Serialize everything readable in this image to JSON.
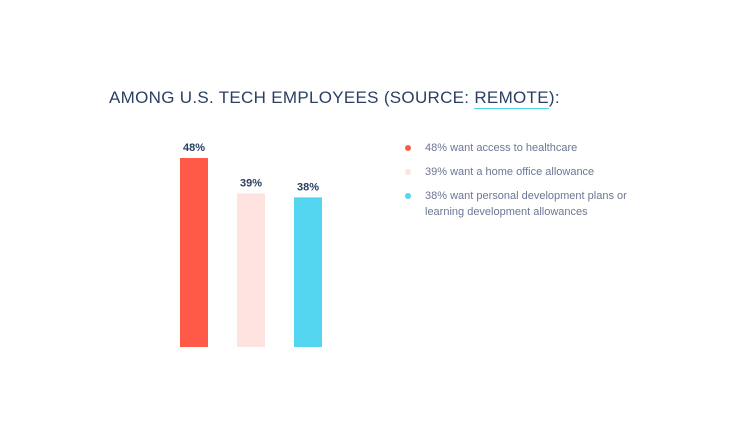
{
  "title": {
    "prefix": "AMONG U.S. TECH EMPLOYEES (SOURCE: ",
    "link_text": "REMOTE",
    "suffix": "):"
  },
  "legend": [
    {
      "text": "48% want access to healthcare",
      "color": "#ff5a47"
    },
    {
      "text": "39% want a home office allowance",
      "color": "#ffe3e1"
    },
    {
      "text": "38% want personal development plans or learning development allowances",
      "color": "#55d6f0"
    }
  ],
  "chart_data": {
    "type": "bar",
    "categories": [
      "want access to healthcare",
      "want a home office allowance",
      "want personal development plans or learning development allowances"
    ],
    "values": [
      48,
      39,
      38
    ],
    "value_labels": [
      "48%",
      "39%",
      "38%"
    ],
    "colors": [
      "#ff5a47",
      "#ffe3e1",
      "#55d6f0"
    ],
    "ylim": [
      0,
      48
    ],
    "grid": false
  }
}
